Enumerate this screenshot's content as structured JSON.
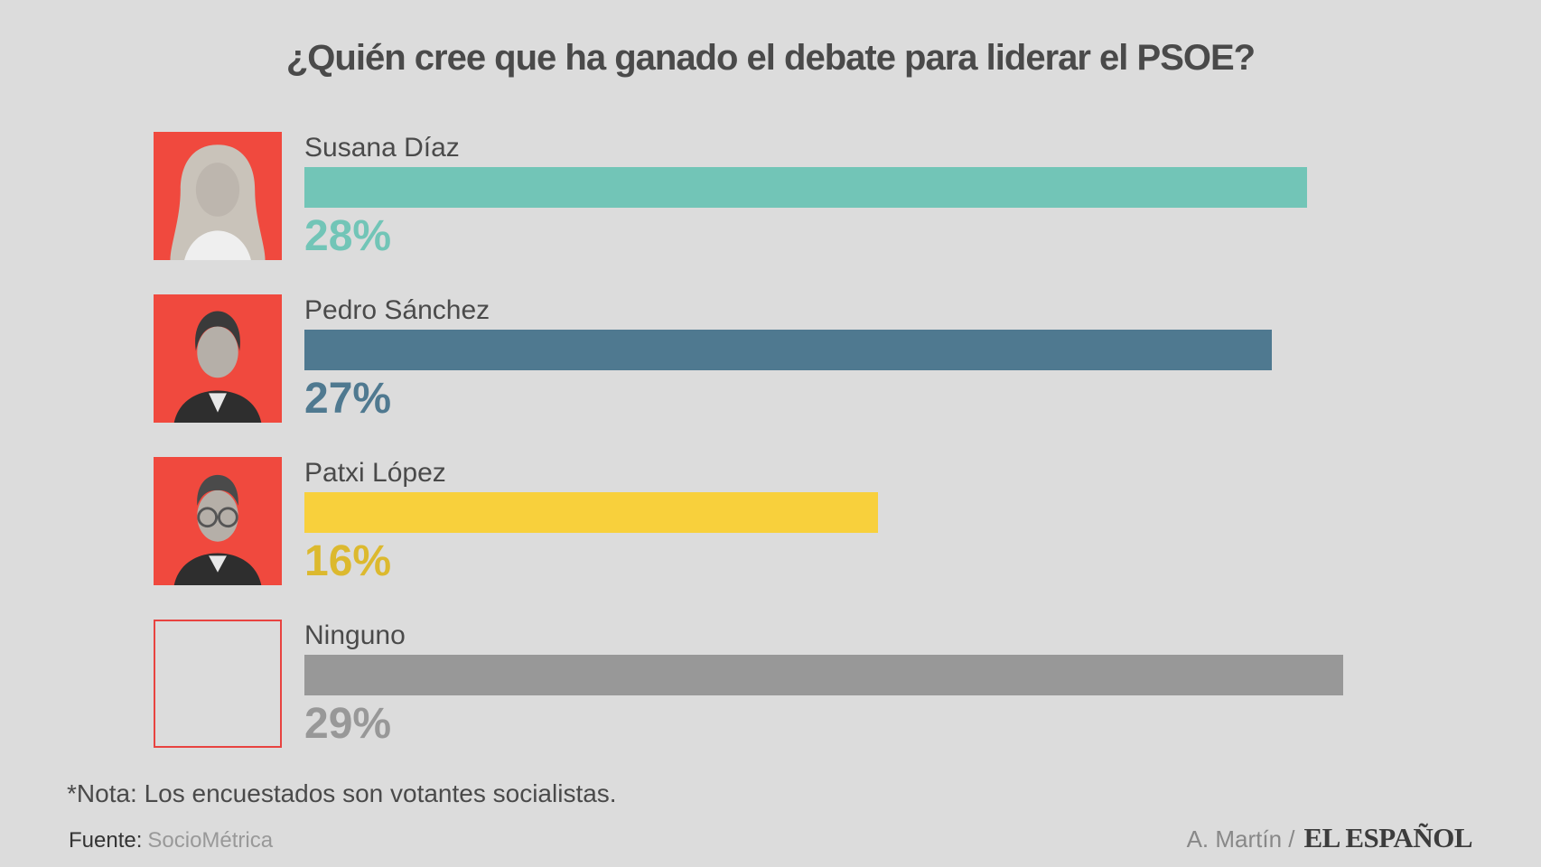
{
  "title": "¿Quién cree que ha ganado el debate para liderar el PSOE?",
  "note": "*Nota: Los encuestados son votantes socialistas.",
  "source": {
    "prefix": "Fuente:",
    "name": "SocioMétrica"
  },
  "credit": {
    "author": "A. Martín /",
    "brand": "EL ESPAÑOL"
  },
  "colors": {
    "background": "#DCDCDC",
    "text_dark": "#4A4A4A",
    "photo_red": "#F0493E",
    "empty_box_border": "#E84340"
  },
  "chart_data": {
    "type": "bar",
    "orientation": "horizontal",
    "title": "¿Quién cree que ha ganado el debate para liderar el PSOE?",
    "unit": "%",
    "xlim": [
      0,
      29
    ],
    "grid": false,
    "legend": false,
    "categories": [
      "Susana Díaz",
      "Pedro Sánchez",
      "Patxi López",
      "Ninguno"
    ],
    "values": [
      28,
      27,
      16,
      29
    ],
    "value_labels": [
      "28%",
      "27%",
      "16%",
      "29%"
    ],
    "bar_colors": [
      "#72C5B7",
      "#4F7990",
      "#F8D03C",
      "#989898"
    ],
    "label_colors": [
      "#72C5B7",
      "#4F7990",
      "#DCB92E",
      "#989898"
    ],
    "photos": [
      "susana-diaz-photo",
      "pedro-sanchez-photo",
      "patxi-lopez-photo",
      "ninguno-empty-box"
    ]
  }
}
